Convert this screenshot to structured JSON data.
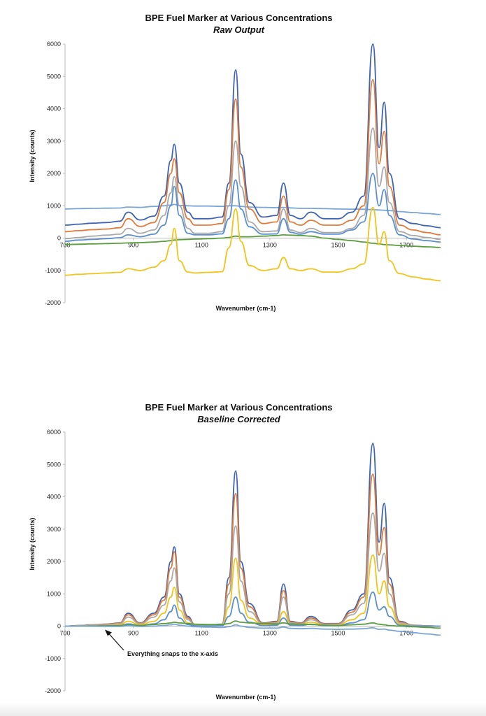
{
  "chart_data": [
    {
      "type": "line",
      "title": "BPE Fuel Marker at Various Concentrations",
      "subtitle": "Raw Output",
      "xlabel": "Wavenumber (cm-1)",
      "ylabel": "Intensity (counts)",
      "xlim": [
        700,
        1800
      ],
      "ylim": [
        -2000,
        6000
      ],
      "xticks": [
        "700",
        "900",
        "1100",
        "1300",
        "1500",
        "1700"
      ],
      "yticks": [
        "6000",
        "5000",
        "4000",
        "3000",
        "2000",
        "1000",
        "0",
        "-1000",
        "-2000"
      ],
      "grid": false,
      "x": [
        700,
        740,
        780,
        820,
        860,
        885,
        920,
        960,
        990,
        1010,
        1020,
        1035,
        1060,
        1080,
        1120,
        1160,
        1180,
        1200,
        1215,
        1240,
        1280,
        1320,
        1340,
        1360,
        1390,
        1420,
        1460,
        1500,
        1540,
        1575,
        1602,
        1620,
        1635,
        1650,
        1680,
        1720,
        1760,
        1800
      ],
      "series": [
        {
          "color": "#7aa6d6",
          "values": [
            900,
            910,
            920,
            925,
            930,
            960,
            950,
            980,
            1000,
            1020,
            1040,
            1010,
            1000,
            990,
            990,
            980,
            1000,
            1000,
            980,
            960,
            950,
            940,
            950,
            935,
            920,
            920,
            910,
            900,
            895,
            890,
            880,
            870,
            860,
            850,
            820,
            790,
            760,
            730
          ]
        },
        {
          "color": "#3f63b0",
          "values": [
            400,
            430,
            460,
            480,
            520,
            800,
            560,
            680,
            1300,
            2400,
            2900,
            1700,
            800,
            600,
            600,
            650,
            1700,
            5200,
            2600,
            1100,
            650,
            700,
            1700,
            700,
            600,
            800,
            600,
            600,
            800,
            1300,
            6000,
            2800,
            4200,
            2000,
            600,
            450,
            380,
            320
          ]
        },
        {
          "color": "#e07b3a",
          "values": [
            200,
            230,
            260,
            280,
            320,
            600,
            360,
            480,
            1100,
            2000,
            2450,
            1400,
            600,
            400,
            400,
            450,
            1500,
            4300,
            2200,
            900,
            450,
            500,
            1300,
            500,
            400,
            550,
            400,
            400,
            550,
            1000,
            4900,
            2300,
            3300,
            1600,
            400,
            250,
            170,
            100
          ]
        },
        {
          "color": "#a9a9a9",
          "values": [
            -20,
            20,
            60,
            90,
            120,
            300,
            150,
            250,
            700,
            1400,
            1900,
            1000,
            300,
            150,
            150,
            200,
            1000,
            3000,
            1600,
            500,
            200,
            220,
            900,
            250,
            170,
            300,
            170,
            170,
            300,
            700,
            3400,
            1600,
            2200,
            1100,
            200,
            80,
            20,
            -40
          ]
        },
        {
          "color": "#5b8fd0",
          "values": [
            -100,
            -60,
            -40,
            -20,
            10,
            100,
            40,
            120,
            400,
            1000,
            1600,
            700,
            150,
            100,
            100,
            130,
            600,
            1800,
            900,
            350,
            120,
            130,
            600,
            180,
            120,
            200,
            120,
            120,
            250,
            500,
            2000,
            1000,
            1500,
            700,
            100,
            -30,
            -80,
            -120
          ]
        },
        {
          "color": "#5a9e3d",
          "values": [
            -200,
            -190,
            -180,
            -170,
            -160,
            -150,
            -140,
            -120,
            -100,
            -80,
            -60,
            -50,
            -40,
            -30,
            -20,
            0,
            20,
            60,
            40,
            40,
            60,
            80,
            100,
            90,
            80,
            60,
            0,
            -40,
            -80,
            -120,
            -160,
            -180,
            -200,
            -210,
            -230,
            -250,
            -270,
            -290
          ]
        },
        {
          "color": "#f0c419",
          "values": [
            -1150,
            -1120,
            -1100,
            -1080,
            -1060,
            -950,
            -1000,
            -900,
            -700,
            -200,
            300,
            -700,
            -1050,
            -1080,
            -1060,
            -1040,
            -300,
            900,
            -100,
            -850,
            -1000,
            -950,
            -600,
            -950,
            -1000,
            -950,
            -1050,
            -1050,
            -950,
            -800,
            950,
            -200,
            200,
            -700,
            -1100,
            -1200,
            -1270,
            -1320
          ]
        }
      ]
    },
    {
      "type": "line",
      "title": "BPE Fuel Marker at Various Concentrations",
      "subtitle": "Baseline Corrected",
      "xlabel": "Wavenumber (cm-1)",
      "ylabel": "Intensity (counts)",
      "xlim": [
        700,
        1800
      ],
      "ylim": [
        -2000,
        6000
      ],
      "xticks": [
        "700",
        "900",
        "1100",
        "1300",
        "1500",
        "1700"
      ],
      "yticks": [
        "6000",
        "5000",
        "4000",
        "3000",
        "2000",
        "1000",
        "0",
        "-1000",
        "-2000"
      ],
      "grid": false,
      "annotation": "Everything snaps to the x-axis",
      "x": [
        700,
        740,
        780,
        820,
        860,
        885,
        920,
        960,
        990,
        1010,
        1020,
        1035,
        1060,
        1080,
        1120,
        1160,
        1180,
        1200,
        1215,
        1240,
        1280,
        1320,
        1340,
        1360,
        1390,
        1420,
        1460,
        1500,
        1540,
        1575,
        1602,
        1620,
        1635,
        1650,
        1680,
        1720,
        1760,
        1800
      ],
      "series": [
        {
          "color": "#3f63b0",
          "values": [
            0,
            20,
            40,
            60,
            100,
            400,
            100,
            400,
            900,
            2000,
            2450,
            1000,
            300,
            50,
            30,
            60,
            1500,
            4800,
            2000,
            700,
            100,
            150,
            1300,
            150,
            100,
            300,
            80,
            80,
            500,
            1000,
            5650,
            2600,
            3800,
            1500,
            150,
            30,
            10,
            0
          ]
        },
        {
          "color": "#e07b3a",
          "values": [
            0,
            15,
            35,
            55,
            90,
            350,
            90,
            350,
            800,
            1800,
            2300,
            900,
            250,
            40,
            25,
            50,
            1300,
            4100,
            1800,
            600,
            90,
            130,
            1100,
            130,
            90,
            250,
            70,
            70,
            430,
            900,
            4700,
            2200,
            3050,
            1300,
            130,
            25,
            10,
            0
          ]
        },
        {
          "color": "#a9a9a9",
          "values": [
            0,
            10,
            25,
            40,
            70,
            280,
            70,
            280,
            650,
            1400,
            1800,
            750,
            200,
            30,
            20,
            40,
            1000,
            3100,
            1400,
            450,
            70,
            100,
            900,
            100,
            70,
            200,
            55,
            55,
            350,
            700,
            3500,
            1700,
            2250,
            1000,
            100,
            20,
            5,
            0
          ]
        },
        {
          "color": "#f0c419",
          "values": [
            0,
            5,
            10,
            20,
            40,
            150,
            40,
            150,
            400,
            900,
            1200,
            500,
            100,
            20,
            10,
            20,
            600,
            2100,
            800,
            250,
            40,
            60,
            450,
            60,
            40,
            120,
            30,
            30,
            200,
            400,
            2200,
            1000,
            1400,
            600,
            60,
            10,
            0,
            0
          ]
        },
        {
          "color": "#5b8fd0",
          "values": [
            0,
            2,
            5,
            10,
            20,
            70,
            20,
            70,
            200,
            450,
            650,
            250,
            50,
            10,
            5,
            10,
            300,
            900,
            400,
            120,
            20,
            30,
            250,
            30,
            20,
            60,
            15,
            15,
            100,
            200,
            1050,
            500,
            600,
            300,
            30,
            5,
            0,
            0
          ]
        },
        {
          "color": "#5a9e3d",
          "values": [
            0,
            2,
            4,
            6,
            10,
            40,
            20,
            50,
            80,
            100,
            120,
            100,
            80,
            60,
            50,
            50,
            80,
            160,
            120,
            100,
            80,
            70,
            100,
            70,
            60,
            50,
            30,
            20,
            40,
            60,
            100,
            60,
            40,
            20,
            0,
            -20,
            -40,
            -60
          ]
        },
        {
          "color": "#7aa6d6",
          "values": [
            0,
            -2,
            -5,
            -8,
            -10,
            10,
            -10,
            0,
            20,
            40,
            60,
            30,
            0,
            -20,
            -30,
            -40,
            -20,
            40,
            0,
            -40,
            -60,
            -60,
            -30,
            -70,
            -80,
            -70,
            -90,
            -100,
            -90,
            -80,
            -50,
            -100,
            -90,
            -120,
            -160,
            -200,
            -240,
            -280
          ]
        }
      ]
    }
  ]
}
